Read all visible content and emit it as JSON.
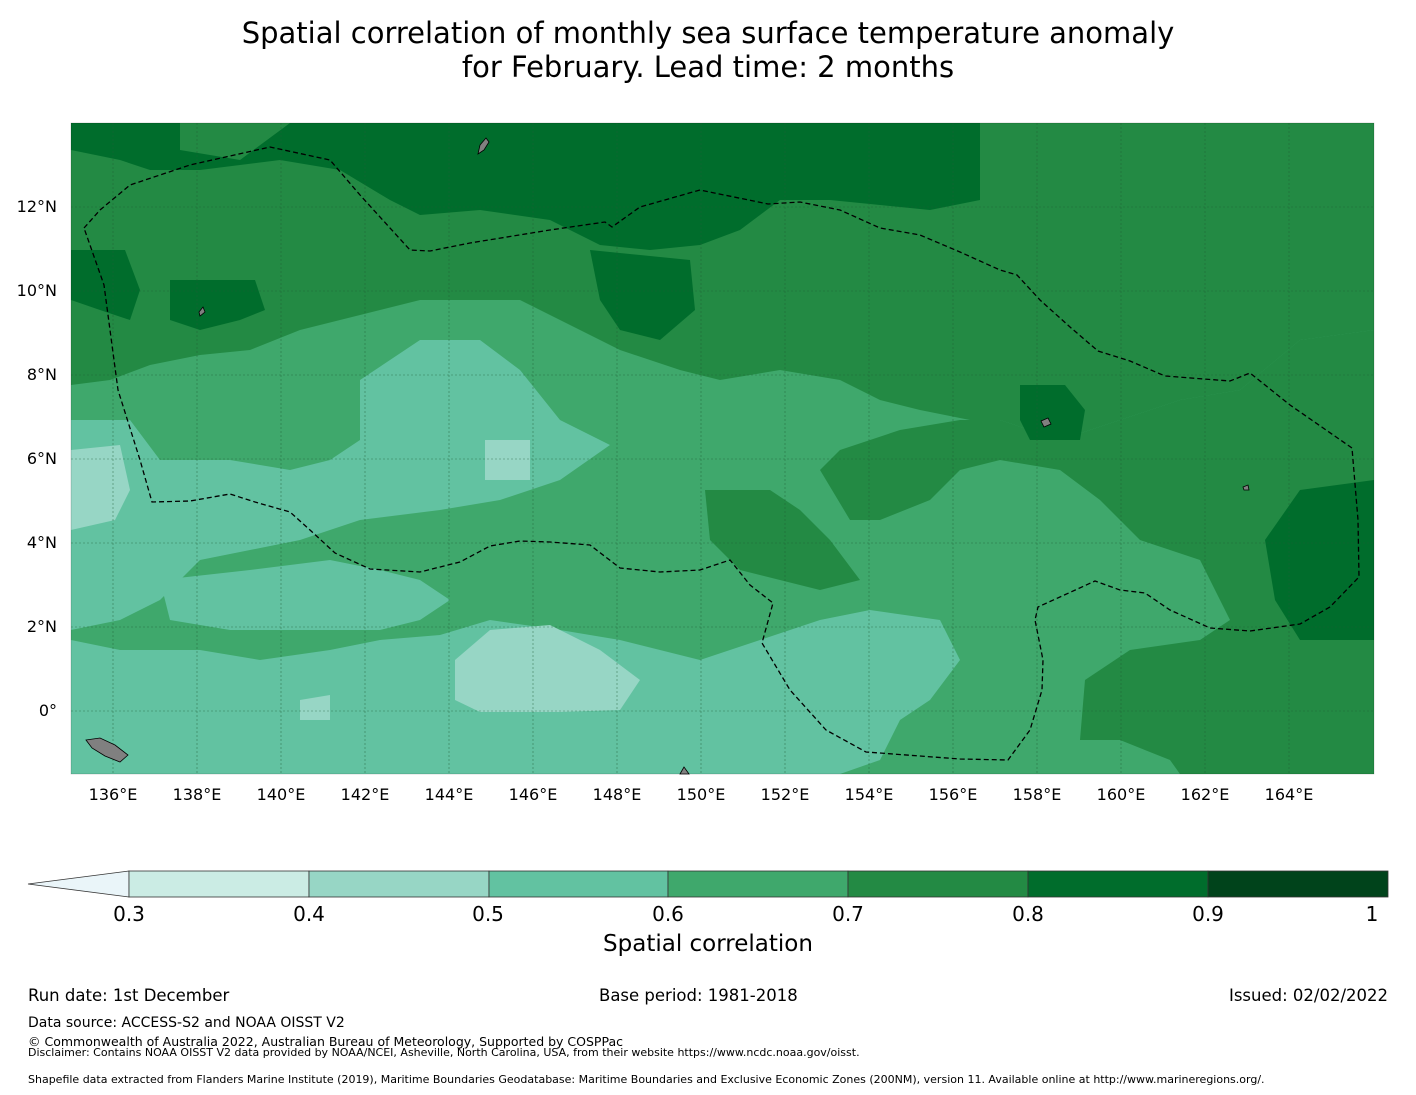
{
  "title": {
    "line1": "Spatial correlation of monthly sea surface temperature anomaly",
    "line2": "for February. Lead time: 2 months"
  },
  "map": {
    "lon_range": [
      135,
      166
    ],
    "lat_range": [
      -1.5,
      14
    ],
    "x_ticks": [
      "136°E",
      "138°E",
      "140°E",
      "142°E",
      "144°E",
      "146°E",
      "148°E",
      "150°E",
      "152°E",
      "154°E",
      "156°E",
      "158°E",
      "160°E",
      "162°E",
      "164°E"
    ],
    "y_ticks": [
      "12°N",
      "10°N",
      "8°N",
      "6°N",
      "4°N",
      "2°N",
      "0°"
    ],
    "grid_color": "#1f5e35",
    "land_color": "#808080",
    "eez_boundary": "dashed"
  },
  "colorbar": {
    "label": "Spatial correlation",
    "ticks": [
      "0.3",
      "0.4",
      "0.5",
      "0.6",
      "0.7",
      "0.8",
      "0.9",
      "1"
    ],
    "under_color": "#eaf5f9",
    "colors": [
      "#cbece4",
      "#97d6c5",
      "#62c2a1",
      "#3fa86c",
      "#238a44",
      "#006d2c",
      "#00431b"
    ]
  },
  "footer": {
    "run_date": "Run date: 1st December",
    "base_period": "Base period: 1981-2018",
    "issued": "Issued: 02/02/2022",
    "data_source": "Data source: ACCESS-S2 and NOAA OISST V2",
    "copyright": "© Commonwealth of Australia 2022, Australian Bureau of Meteorology, Supported by COSPPac",
    "disclaimer": "Disclaimer: Contains NOAA OISST V2 data provided by NOAA/NCEI, Asheville, North Carolina, USA, from their website https://www.ncdc.noaa.gov/oisst.",
    "shapefile": "Shapefile data extracted from Flanders Marine Institute (2019), Maritime Boundaries Geodatabase: Maritime Boundaries and Exclusive Economic Zones (200NM), version 11. Available online at http://www.marineregions.org/."
  }
}
